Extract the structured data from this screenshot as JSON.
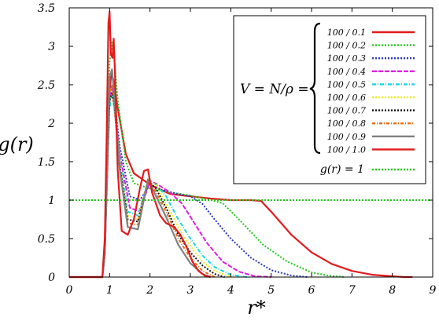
{
  "chart_data": {
    "type": "line",
    "title": "",
    "xlabel": "r*",
    "ylabel": "g(r)",
    "xlim": [
      0,
      9
    ],
    "ylim": [
      0,
      3.5
    ],
    "xticks": [
      "0",
      "1",
      "2",
      "3",
      "4",
      "5",
      "6",
      "7",
      "8",
      "9"
    ],
    "yticks": [
      "0",
      "0.5",
      "1",
      "1.5",
      "2",
      "2.5",
      "3",
      "3.5"
    ],
    "legend_position": "top-right",
    "legend_group_label": "V = N/ρ =",
    "series": [
      {
        "name": "100 / 0.1",
        "color": "#e31a1c",
        "dash": "",
        "x": [
          0,
          0.7,
          0.82,
          0.88,
          0.94,
          1.0,
          1.04,
          1.1,
          1.2,
          1.4,
          1.6,
          2.0,
          2.5,
          3.0,
          3.5,
          4.0,
          4.5,
          4.75,
          5.0,
          5.5,
          6.0,
          6.5,
          7.0,
          7.5,
          8.0,
          8.3,
          8.5
        ],
        "y": [
          0,
          0,
          0,
          0.3,
          1.4,
          2.4,
          2.65,
          2.55,
          2.2,
          1.6,
          1.35,
          1.2,
          1.08,
          1.05,
          1.02,
          1.0,
          1.0,
          0.99,
          0.85,
          0.55,
          0.32,
          0.17,
          0.08,
          0.03,
          0.01,
          0.0,
          0
        ]
      },
      {
        "name": "100 / 0.2",
        "color": "#22c91a",
        "dash": "2 2",
        "x": [
          0,
          0.7,
          0.82,
          0.88,
          0.94,
          1.0,
          1.06,
          1.12,
          1.2,
          1.4,
          1.6,
          2.0,
          2.5,
          3.0,
          3.5,
          3.8,
          4.2,
          4.8,
          5.4,
          6.0,
          6.4,
          6.8
        ],
        "y": [
          0,
          0,
          0,
          0.3,
          1.6,
          2.8,
          3.05,
          2.8,
          2.3,
          1.5,
          1.22,
          1.15,
          1.1,
          1.06,
          1.0,
          0.96,
          0.75,
          0.42,
          0.2,
          0.06,
          0.02,
          0
        ]
      },
      {
        "name": "100 / 0.3",
        "color": "#2c38c0",
        "dash": "2 2",
        "x": [
          0,
          0.7,
          0.82,
          0.88,
          0.94,
          1.0,
          1.06,
          1.12,
          1.25,
          1.5,
          1.75,
          2.0,
          2.3,
          2.7,
          3.0,
          3.3,
          3.6,
          4.0,
          4.5,
          5.0,
          5.5,
          5.9
        ],
        "y": [
          0,
          0,
          0,
          0.3,
          1.4,
          2.4,
          2.5,
          2.3,
          1.7,
          1.05,
          1.0,
          1.2,
          1.13,
          1.08,
          1.05,
          0.95,
          0.75,
          0.5,
          0.25,
          0.09,
          0.02,
          0
        ]
      },
      {
        "name": "100 / 0.4",
        "color": "#e51be5",
        "dash": "6 2",
        "x": [
          0,
          0.7,
          0.82,
          0.88,
          0.94,
          1.0,
          1.06,
          1.12,
          1.25,
          1.5,
          1.75,
          2.0,
          2.2,
          2.5,
          2.8,
          3.1,
          3.4,
          3.8,
          4.2,
          4.6,
          5.0
        ],
        "y": [
          0,
          0,
          0,
          0.3,
          1.3,
          2.3,
          2.45,
          2.2,
          1.6,
          0.9,
          0.85,
          1.25,
          1.2,
          1.1,
          0.95,
          0.7,
          0.45,
          0.2,
          0.07,
          0.01,
          0
        ]
      },
      {
        "name": "100 / 0.5",
        "color": "#18d8e0",
        "dash": "5 2 1 2",
        "x": [
          0,
          0.7,
          0.82,
          0.88,
          0.94,
          1.0,
          1.06,
          1.12,
          1.25,
          1.45,
          1.7,
          1.95,
          2.15,
          2.4,
          2.7,
          3.0,
          3.3,
          3.6,
          4.0,
          4.4
        ],
        "y": [
          0,
          0,
          0,
          0.3,
          1.3,
          2.2,
          2.4,
          2.2,
          1.55,
          0.85,
          0.8,
          1.25,
          1.2,
          1.05,
          0.75,
          0.5,
          0.28,
          0.13,
          0.03,
          0
        ]
      },
      {
        "name": "100 / 0.6",
        "color": "#f4ea1f",
        "dash": "2 2",
        "x": [
          0,
          0.7,
          0.82,
          0.88,
          0.94,
          1.0,
          1.06,
          1.12,
          1.25,
          1.45,
          1.7,
          1.95,
          2.15,
          2.4,
          2.7,
          3.0,
          3.3,
          3.6,
          4.0
        ],
        "y": [
          0,
          0,
          0,
          0.3,
          1.4,
          2.3,
          2.4,
          2.2,
          1.5,
          0.8,
          0.75,
          1.25,
          1.2,
          0.95,
          0.65,
          0.4,
          0.2,
          0.08,
          0
        ]
      },
      {
        "name": "100 / 0.7",
        "color": "#111111",
        "dash": "2 2",
        "x": [
          0,
          0.7,
          0.82,
          0.88,
          0.94,
          1.0,
          1.06,
          1.12,
          1.25,
          1.45,
          1.7,
          1.95,
          2.15,
          2.4,
          2.7,
          3.0,
          3.3,
          3.6,
          3.85
        ],
        "y": [
          0,
          0,
          0,
          0.3,
          1.4,
          2.3,
          2.4,
          2.2,
          1.45,
          0.75,
          0.72,
          1.25,
          1.15,
          0.9,
          0.55,
          0.32,
          0.15,
          0.04,
          0
        ]
      },
      {
        "name": "100 / 0.8",
        "color": "#f06a10",
        "dash": "4 2 1 2",
        "x": [
          0,
          0.7,
          0.82,
          0.88,
          0.94,
          1.0,
          1.06,
          1.12,
          1.25,
          1.45,
          1.7,
          1.95,
          2.15,
          2.4,
          2.7,
          3.0,
          3.3,
          3.6
        ],
        "y": [
          0,
          0,
          0,
          0.3,
          1.4,
          2.4,
          2.5,
          2.2,
          1.4,
          0.7,
          0.68,
          1.25,
          1.1,
          0.85,
          0.5,
          0.25,
          0.08,
          0
        ]
      },
      {
        "name": "100 / 0.9",
        "color": "#808080",
        "dash": "",
        "x": [
          0,
          0.7,
          0.82,
          0.88,
          0.94,
          1.0,
          1.06,
          1.12,
          1.25,
          1.45,
          1.7,
          1.95,
          2.15,
          2.4,
          2.7,
          3.0,
          3.3,
          3.5
        ],
        "y": [
          0,
          0,
          0,
          0.3,
          1.5,
          2.6,
          2.7,
          2.3,
          1.4,
          0.65,
          0.62,
          1.27,
          1.05,
          0.78,
          0.42,
          0.18,
          0.04,
          0
        ]
      },
      {
        "name": "100 / 1.0",
        "color": "#e31a1c",
        "dash": "",
        "x": [
          0,
          0.7,
          0.82,
          0.88,
          0.93,
          0.97,
          1.0,
          1.03,
          1.07,
          1.1,
          1.13,
          1.2,
          1.3,
          1.45,
          1.6,
          1.75,
          1.85,
          1.95,
          2.05,
          2.25,
          2.4,
          2.6,
          2.75,
          2.9,
          3.05,
          3.2,
          3.35,
          3.5
        ],
        "y": [
          0,
          0,
          0,
          0.5,
          1.9,
          3.3,
          3.45,
          2.9,
          2.85,
          3.1,
          2.7,
          1.4,
          0.6,
          0.55,
          0.75,
          1.15,
          1.38,
          1.4,
          1.1,
          0.8,
          0.7,
          0.65,
          0.55,
          0.4,
          0.2,
          0.08,
          0.02,
          0
        ]
      },
      {
        "name": "g(r) = 1",
        "color": "#22c91a",
        "dash": "2 2",
        "x": [
          0,
          8.95
        ],
        "y": [
          1,
          1
        ]
      }
    ]
  }
}
